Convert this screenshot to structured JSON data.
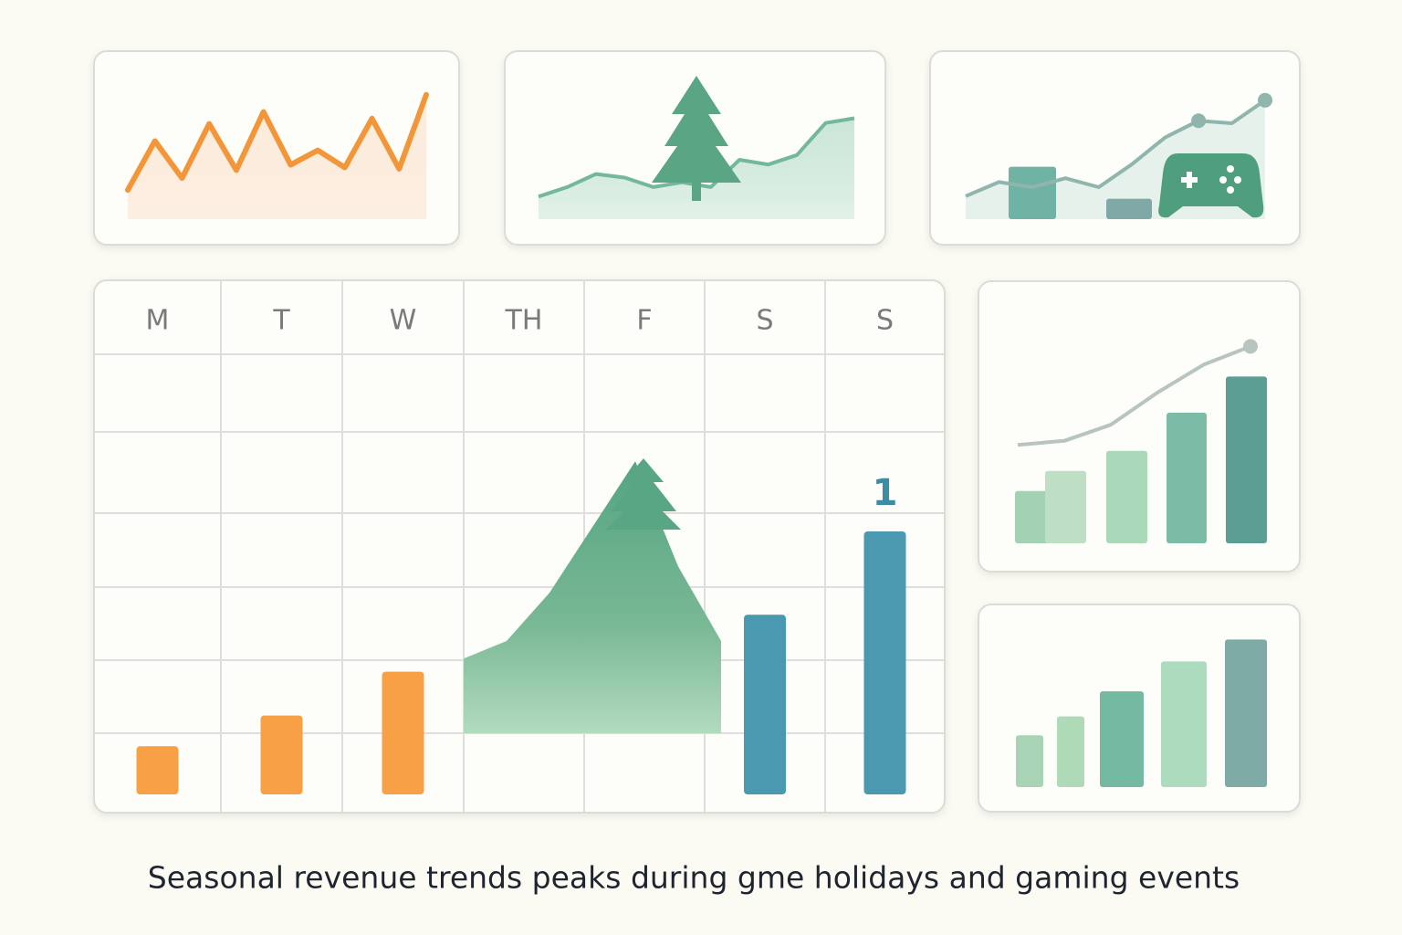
{
  "caption": "Seasonal revenue trends peaks during gme holidays and gaming events",
  "chart_data": [
    {
      "type": "line",
      "values": [
        22,
        59,
        31,
        72,
        37,
        81,
        41,
        52,
        39,
        76,
        38,
        94
      ],
      "color": "#f3963a",
      "ylim": [
        0,
        100
      ]
    },
    {
      "type": "area",
      "values": [
        19,
        27,
        38,
        35,
        27,
        31,
        27,
        50,
        46,
        54,
        81,
        85
      ],
      "color": "#73b89c",
      "ylim": [
        0,
        100
      ]
    },
    {
      "type": "combo",
      "values": [
        18,
        29,
        25,
        32,
        25,
        43,
        64,
        77,
        75,
        93
      ],
      "color": "#8fb5ad",
      "bar_values": [
        41,
        16
      ],
      "colors": [
        "#6fb3a5",
        "#7fa8a6"
      ],
      "ylim": [
        0,
        100
      ]
    },
    {
      "type": "combo",
      "values": [
        49,
        51,
        59,
        75,
        89,
        98
      ],
      "color": "#b8c4bf",
      "bar_values": [
        26,
        36,
        46,
        65,
        83
      ],
      "colors": [
        "#a3d1b4",
        "#bfdfc5",
        "#a9d9b8",
        "#7cbca6",
        "#5b9e93"
      ],
      "ylim": [
        0,
        100
      ]
    },
    {
      "type": "bar",
      "values": [
        33,
        45,
        61,
        80,
        94
      ],
      "colors": [
        "#a8d3b4",
        "#aedab8",
        "#74b9a2",
        "#acdcbd",
        "#7eaba5"
      ],
      "ylim": [
        0,
        100
      ]
    },
    {
      "type": "calendar",
      "categories": [
        "M",
        "T",
        "W",
        "TH",
        "F",
        "S",
        "S"
      ],
      "values": [
        11,
        18,
        28,
        null,
        null,
        41,
        60
      ],
      "colors": [
        "#f7a045",
        "#f7a045",
        "#f7a045",
        null,
        null,
        "#4a99b1",
        "#4a99b1"
      ],
      "ylim": [
        0,
        100
      ],
      "area": {
        "values": [
          31,
          35,
          46,
          61,
          76,
          52,
          35
        ],
        "color": "#5aa886"
      },
      "annotation": "1"
    }
  ]
}
